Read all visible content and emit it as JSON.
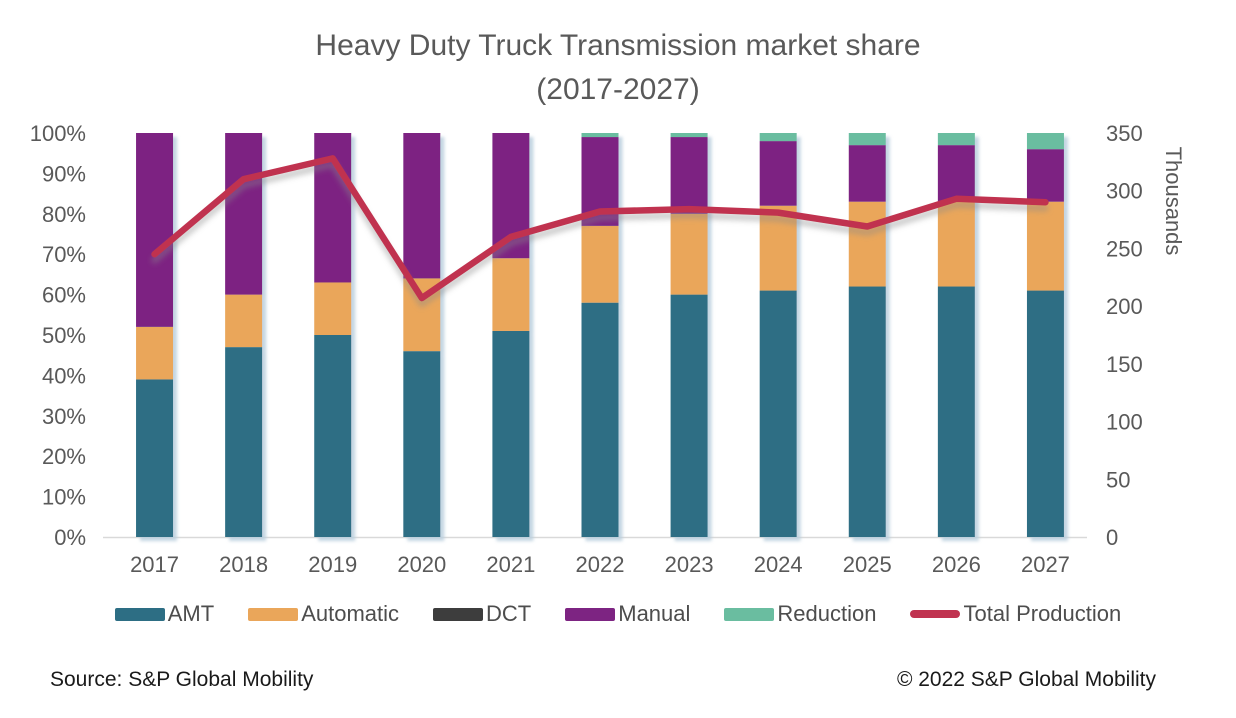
{
  "title": "Heavy Duty Truck Transmission market share",
  "subtitle": "(2017-2027)",
  "footer": {
    "source": "Source: S&P Global Mobility",
    "copyright": "© 2022 S&P Global Mobility"
  },
  "chart_data": {
    "type": "bar",
    "subtype": "100%-stacked-columns-with-line-overlay",
    "title": "Heavy Duty Truck Transmission market share",
    "subtitle": "(2017-2027)",
    "categories": [
      "2017",
      "2018",
      "2019",
      "2020",
      "2021",
      "2022",
      "2023",
      "2024",
      "2025",
      "2026",
      "2027"
    ],
    "stack_series": [
      {
        "name": "AMT",
        "color": "#2d6e84",
        "values": [
          39,
          47,
          50,
          46,
          51,
          58,
          60,
          61,
          62,
          62,
          61
        ]
      },
      {
        "name": "Automatic",
        "color": "#eaa65a",
        "values": [
          13,
          13,
          13,
          18,
          18,
          19,
          20,
          21,
          21,
          21,
          22
        ]
      },
      {
        "name": "DCT",
        "color": "#3d3d3d",
        "values": [
          0,
          0,
          0,
          0,
          0,
          0,
          0,
          0,
          0,
          0,
          0
        ]
      },
      {
        "name": "Manual",
        "color": "#7d2482",
        "values": [
          48,
          40,
          37,
          36,
          31,
          22,
          19,
          16,
          14,
          14,
          13
        ]
      },
      {
        "name": "Reduction",
        "color": "#6abda0",
        "values": [
          0,
          0,
          0,
          0,
          0,
          1,
          1,
          2,
          3,
          3,
          4
        ]
      }
    ],
    "line_series": {
      "name": "Total Production",
      "color": "#c03350",
      "axis": "right",
      "values": [
        245,
        310,
        328,
        207,
        260,
        282,
        284,
        281,
        269,
        293,
        290
      ]
    },
    "left_axis": {
      "ticks": [
        "0%",
        "10%",
        "20%",
        "30%",
        "40%",
        "50%",
        "60%",
        "70%",
        "80%",
        "90%",
        "100%"
      ],
      "min": 0,
      "max": 100
    },
    "right_axis": {
      "ticks": [
        "0",
        "50",
        "100",
        "150",
        "200",
        "250",
        "300",
        "350"
      ],
      "min": 0,
      "max": 350,
      "label": "Thousands"
    },
    "grid": "off",
    "legend_position": "bottom"
  }
}
